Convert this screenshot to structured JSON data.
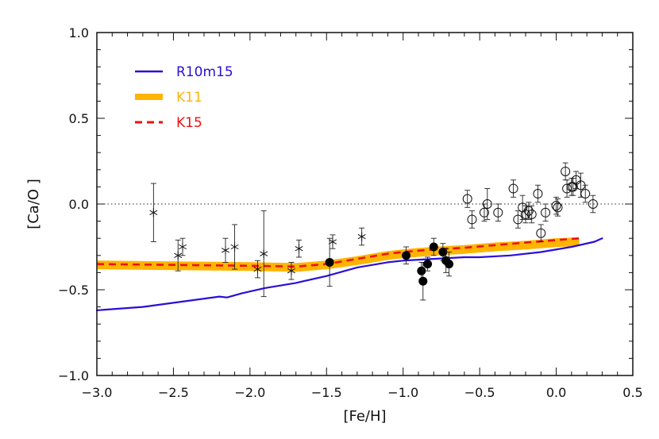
{
  "chart_data": {
    "type": "scatter",
    "title": "",
    "xlabel": "[Fe/H]",
    "ylabel": "[Ca/O ]",
    "xlim": [
      -3.0,
      0.5
    ],
    "ylim": [
      -1.0,
      1.0
    ],
    "xticks": [
      "-3.0",
      "-2.5",
      "-2.0",
      "-1.5",
      "-1.0",
      "-0.5",
      "0.0",
      "0.5"
    ],
    "yticks": [
      "-1.0",
      "-0.5",
      "0.0",
      "0.5",
      "1.0"
    ],
    "reference_line_y": 0.0,
    "legend_position": "top-left",
    "series": [
      {
        "name": "R10m15",
        "kind": "line",
        "color": "#2a0fd8",
        "x": [
          -3.0,
          -2.7,
          -2.45,
          -2.2,
          -2.15,
          -2.05,
          -1.9,
          -1.7,
          -1.5,
          -1.3,
          -1.1,
          -1.0,
          -0.8,
          -0.6,
          -0.5,
          -0.3,
          -0.1,
          0.1,
          0.25,
          0.3
        ],
        "y": [
          -0.62,
          -0.6,
          -0.57,
          -0.54,
          -0.545,
          -0.52,
          -0.49,
          -0.46,
          -0.42,
          -0.37,
          -0.34,
          -0.33,
          -0.32,
          -0.31,
          -0.31,
          -0.3,
          -0.28,
          -0.25,
          -0.22,
          -0.2
        ]
      },
      {
        "name": "K11",
        "kind": "band",
        "color": "#ffb400",
        "x": [
          -3.0,
          -2.5,
          -2.0,
          -1.7,
          -1.5,
          -1.3,
          -1.1,
          -1.0,
          -0.8,
          -0.6,
          -0.4,
          -0.2,
          0.0,
          0.15
        ],
        "y": [
          -0.355,
          -0.36,
          -0.365,
          -0.37,
          -0.355,
          -0.33,
          -0.3,
          -0.29,
          -0.275,
          -0.265,
          -0.25,
          -0.24,
          -0.225,
          -0.22
        ]
      },
      {
        "name": "K15",
        "kind": "dashed",
        "color": "#ee1111",
        "x": [
          -3.0,
          -2.5,
          -2.0,
          -1.7,
          -1.5,
          -1.3,
          -1.1,
          -1.0,
          -0.8,
          -0.6,
          -0.4,
          -0.2,
          0.0,
          0.15
        ],
        "y": [
          -0.35,
          -0.355,
          -0.36,
          -0.365,
          -0.35,
          -0.32,
          -0.29,
          -0.28,
          -0.265,
          -0.255,
          -0.24,
          -0.225,
          -0.21,
          -0.2
        ]
      }
    ],
    "observations": [
      {
        "marker": "asterisk",
        "points": [
          {
            "x": -2.63,
            "y": -0.05,
            "err": 0.17
          },
          {
            "x": -2.47,
            "y": -0.3,
            "err": 0.09
          },
          {
            "x": -2.44,
            "y": -0.25,
            "err": 0.05
          },
          {
            "x": -2.16,
            "y": -0.27,
            "err": 0.07
          },
          {
            "x": -2.1,
            "y": -0.25,
            "err": 0.13
          },
          {
            "x": -1.95,
            "y": -0.38,
            "err": 0.05
          },
          {
            "x": -1.91,
            "y": -0.29,
            "err": 0.25
          },
          {
            "x": -1.73,
            "y": -0.39,
            "err": 0.05
          },
          {
            "x": -1.68,
            "y": -0.26,
            "err": 0.05
          },
          {
            "x": -1.46,
            "y": -0.22,
            "err": 0.04
          },
          {
            "x": -1.27,
            "y": -0.19,
            "err": 0.05
          }
        ]
      },
      {
        "marker": "filled-circle",
        "points": [
          {
            "x": -1.48,
            "y": -0.34,
            "err": 0.14
          },
          {
            "x": -0.98,
            "y": -0.3,
            "err": 0.05
          },
          {
            "x": -0.88,
            "y": -0.39,
            "err": 0.05
          },
          {
            "x": -0.87,
            "y": -0.45,
            "err": 0.11
          },
          {
            "x": -0.84,
            "y": -0.35,
            "err": 0.04
          },
          {
            "x": -0.8,
            "y": -0.25,
            "err": 0.05
          },
          {
            "x": -0.74,
            "y": -0.28,
            "err": 0.05
          },
          {
            "x": -0.72,
            "y": -0.33,
            "err": 0.07
          },
          {
            "x": -0.7,
            "y": -0.35,
            "err": 0.07
          }
        ]
      },
      {
        "marker": "open-circle",
        "points": [
          {
            "x": -0.58,
            "y": 0.03,
            "err": 0.05
          },
          {
            "x": -0.55,
            "y": -0.09,
            "err": 0.05
          },
          {
            "x": -0.47,
            "y": -0.05,
            "err": 0.05
          },
          {
            "x": -0.45,
            "y": 0.0,
            "err": 0.09
          },
          {
            "x": -0.38,
            "y": -0.05,
            "err": 0.05
          },
          {
            "x": -0.28,
            "y": 0.09,
            "err": 0.05
          },
          {
            "x": -0.25,
            "y": -0.09,
            "err": 0.05
          },
          {
            "x": -0.22,
            "y": -0.02,
            "err": 0.07
          },
          {
            "x": -0.2,
            "y": -0.06,
            "err": 0.05
          },
          {
            "x": -0.18,
            "y": -0.04,
            "err": 0.05
          },
          {
            "x": -0.16,
            "y": -0.06,
            "err": 0.05
          },
          {
            "x": -0.12,
            "y": 0.06,
            "err": 0.05
          },
          {
            "x": -0.1,
            "y": -0.17,
            "err": 0.05
          },
          {
            "x": -0.07,
            "y": -0.05,
            "err": 0.05
          },
          {
            "x": 0.0,
            "y": -0.01,
            "err": 0.05
          },
          {
            "x": 0.01,
            "y": -0.02,
            "err": 0.05
          },
          {
            "x": 0.06,
            "y": 0.19,
            "err": 0.05
          },
          {
            "x": 0.07,
            "y": 0.09,
            "err": 0.05
          },
          {
            "x": 0.1,
            "y": 0.1,
            "err": 0.05
          },
          {
            "x": 0.11,
            "y": 0.1,
            "err": 0.05
          },
          {
            "x": 0.13,
            "y": 0.14,
            "err": 0.05
          },
          {
            "x": 0.16,
            "y": 0.11,
            "err": 0.07
          },
          {
            "x": 0.19,
            "y": 0.06,
            "err": 0.05
          },
          {
            "x": 0.24,
            "y": 0.0,
            "err": 0.05
          }
        ]
      }
    ]
  }
}
